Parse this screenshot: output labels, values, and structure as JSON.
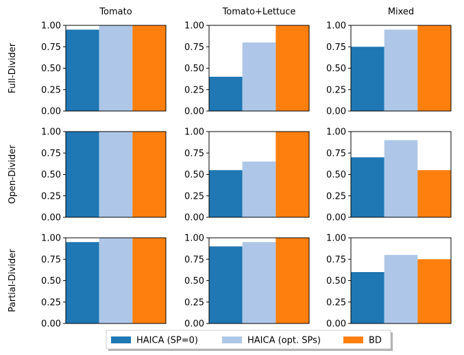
{
  "chart_data": {
    "type": "bar",
    "layout": "3x3 grid of subplots",
    "columns": [
      "Tomato",
      "Tomato+Lettuce",
      "Mixed"
    ],
    "rows": [
      "Full-Divider",
      "Open-Divider",
      "Partial-Divider"
    ],
    "series": [
      {
        "name": "HAICA (SP=0)",
        "color": "#1f77b4"
      },
      {
        "name": "HAICA (opt. SPs)",
        "color": "#aec7e8"
      },
      {
        "name": "BD",
        "color": "#ff7f0e"
      }
    ],
    "values": [
      [
        [
          0.95,
          1.0,
          1.0
        ],
        [
          0.4,
          0.8,
          1.0
        ],
        [
          0.75,
          0.95,
          1.0
        ]
      ],
      [
        [
          1.0,
          1.0,
          1.0
        ],
        [
          0.55,
          0.65,
          1.0
        ],
        [
          0.7,
          0.9,
          0.55
        ]
      ],
      [
        [
          0.95,
          1.0,
          1.0
        ],
        [
          0.9,
          0.95,
          1.0
        ],
        [
          0.6,
          0.8,
          0.75
        ]
      ]
    ],
    "ylim": [
      0,
      1
    ],
    "yticks": [
      "0.00",
      "0.25",
      "0.50",
      "0.75",
      "1.00"
    ],
    "legend_position": "bottom-center",
    "grid": false
  }
}
